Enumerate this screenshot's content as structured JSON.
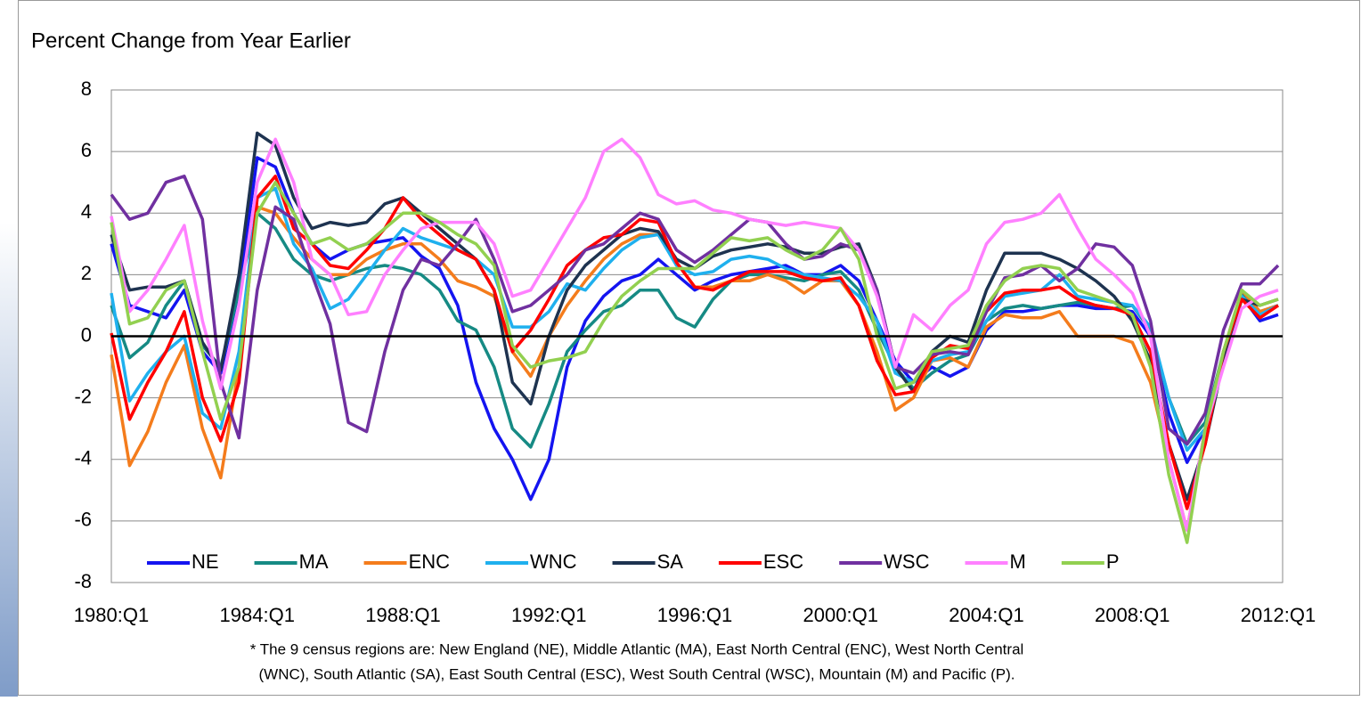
{
  "chart_data": {
    "type": "line",
    "title": "Percent Change from Year Earlier",
    "footnote": [
      "* The 9 census regions are: New England (NE), Middle Atlantic (MA), East North Central (ENC), West North Central",
      "(WNC), South Atlantic (SA), East South Central (ESC), West South Central (WSC), Mountain (M) and Pacific (P)."
    ],
    "categories": [
      "1980:Q1",
      null,
      null,
      null,
      null,
      null,
      null,
      null,
      "1984:Q1",
      null,
      null,
      null,
      null,
      null,
      null,
      null,
      "1988:Q1",
      null,
      null,
      null,
      null,
      null,
      null,
      null,
      "1992:Q1",
      null,
      null,
      null,
      null,
      null,
      null,
      null,
      "1996:Q1",
      null,
      null,
      null,
      null,
      null,
      null,
      null,
      "2000:Q1",
      null,
      null,
      null,
      null,
      null,
      null,
      null,
      "2004:Q1",
      null,
      null,
      null,
      null,
      null,
      null,
      null,
      "2008:Q1",
      null,
      null,
      null,
      null,
      null,
      null,
      null,
      "2012:Q1"
    ],
    "ylim": [
      -8,
      8
    ],
    "yticks": [
      -8,
      -6,
      -4,
      -2,
      0,
      2,
      4,
      6,
      8
    ],
    "grid": true,
    "legend": "bottom",
    "series": [
      {
        "name": "NE",
        "color": "#1414f0",
        "values": [
          3.0,
          1.0,
          0.8,
          0.6,
          1.5,
          -0.5,
          -1.2,
          1.5,
          5.8,
          5.5,
          4.0,
          3.0,
          2.5,
          2.8,
          3.0,
          3.1,
          3.2,
          2.6,
          2.2,
          1.0,
          -1.5,
          -3.0,
          -4.0,
          -5.3,
          -4.0,
          -1.0,
          0.5,
          1.3,
          1.8,
          2.0,
          2.5,
          2.0,
          1.5,
          1.8,
          2.0,
          2.1,
          2.2,
          2.3,
          2.0,
          2.0,
          2.3,
          1.8,
          0.5,
          -0.8,
          -1.5,
          -1.0,
          -1.3,
          -1.0,
          0.2,
          0.8,
          0.8,
          0.9,
          1.0,
          1.0,
          0.9,
          0.9,
          0.8,
          0.0,
          -2.5,
          -4.1,
          -3.0,
          -0.8,
          1.3,
          0.5,
          0.7
        ]
      },
      {
        "name": "MA",
        "color": "#168a84",
        "values": [
          1.0,
          -0.7,
          -0.2,
          1.0,
          1.8,
          -0.3,
          -1.0,
          1.5,
          4.0,
          3.5,
          2.5,
          2.0,
          1.8,
          2.0,
          2.2,
          2.3,
          2.2,
          2.0,
          1.5,
          0.5,
          0.2,
          -1.0,
          -3.0,
          -3.6,
          -2.2,
          -0.5,
          0.2,
          0.8,
          1.0,
          1.5,
          1.5,
          0.6,
          0.3,
          1.2,
          1.8,
          2.0,
          2.0,
          1.9,
          1.8,
          2.0,
          2.1,
          1.5,
          0.2,
          -1.0,
          -1.7,
          -1.2,
          -0.8,
          -0.6,
          0.5,
          0.9,
          1.0,
          0.9,
          1.0,
          1.1,
          1.0,
          0.9,
          1.0,
          0.2,
          -2.0,
          -3.5,
          -2.8,
          -0.5,
          1.4,
          0.8,
          1.0
        ]
      },
      {
        "name": "ENC",
        "color": "#f47c1c",
        "values": [
          -0.6,
          -4.2,
          -3.1,
          -1.5,
          -0.3,
          -3.0,
          -4.6,
          -1.0,
          4.2,
          4.0,
          3.2,
          2.5,
          2.0,
          2.0,
          2.5,
          2.8,
          3.0,
          3.0,
          2.5,
          1.8,
          1.6,
          1.3,
          -0.5,
          -1.3,
          0.0,
          1.0,
          1.8,
          2.5,
          3.0,
          3.3,
          3.3,
          2.4,
          1.6,
          1.6,
          1.8,
          1.8,
          2.0,
          1.8,
          1.4,
          1.8,
          1.8,
          1.0,
          -0.5,
          -2.4,
          -2.0,
          -0.8,
          -0.7,
          -1.0,
          0.3,
          0.7,
          0.6,
          0.6,
          0.8,
          0.0,
          0.0,
          0.0,
          -0.2,
          -1.5,
          -4.0,
          -6.3,
          -3.0,
          -0.5,
          1.5,
          0.8,
          1.0
        ]
      },
      {
        "name": "WNC",
        "color": "#1fb0ee",
        "values": [
          1.4,
          -2.1,
          -1.2,
          -0.5,
          0.0,
          -2.5,
          -3.0,
          -0.5,
          4.5,
          4.8,
          3.0,
          2.2,
          0.9,
          1.2,
          2.0,
          2.8,
          3.5,
          3.2,
          3.0,
          2.8,
          2.5,
          2.0,
          0.3,
          0.3,
          0.8,
          1.7,
          1.5,
          2.2,
          2.8,
          3.2,
          3.3,
          2.3,
          2.0,
          2.1,
          2.5,
          2.6,
          2.5,
          2.2,
          2.0,
          1.9,
          1.8,
          1.3,
          0.5,
          -1.2,
          -1.5,
          -0.8,
          -0.6,
          -0.5,
          0.5,
          1.3,
          1.4,
          1.5,
          2.0,
          1.3,
          1.2,
          1.1,
          1.0,
          0.3,
          -2.0,
          -3.7,
          -3.0,
          -0.5,
          1.3,
          0.7,
          1.0
        ]
      },
      {
        "name": "SA",
        "color": "#1e3350",
        "values": [
          3.3,
          1.5,
          1.6,
          1.6,
          1.8,
          -0.2,
          -1.1,
          2.0,
          6.6,
          6.2,
          4.5,
          3.5,
          3.7,
          3.6,
          3.7,
          4.3,
          4.5,
          4.0,
          3.5,
          3.0,
          2.5,
          1.5,
          -1.5,
          -2.2,
          0.0,
          1.5,
          2.3,
          2.8,
          3.3,
          3.5,
          3.4,
          2.5,
          2.2,
          2.6,
          2.8,
          2.9,
          3.0,
          2.9,
          2.7,
          2.7,
          2.9,
          3.0,
          1.5,
          -1.0,
          -1.8,
          -0.5,
          0.0,
          -0.2,
          1.5,
          2.7,
          2.7,
          2.7,
          2.5,
          2.2,
          1.8,
          1.3,
          0.5,
          -0.8,
          -3.5,
          -5.3,
          -3.5,
          -0.8,
          1.2,
          1.0,
          1.2
        ]
      },
      {
        "name": "ESC",
        "color": "#ff0000",
        "values": [
          0.1,
          -2.7,
          -1.5,
          -0.5,
          0.8,
          -2.0,
          -3.4,
          -1.5,
          4.5,
          5.2,
          3.5,
          3.0,
          2.3,
          2.2,
          2.8,
          3.5,
          4.5,
          3.8,
          3.3,
          2.8,
          2.5,
          1.5,
          -0.5,
          0.2,
          1.2,
          2.3,
          2.8,
          3.2,
          3.3,
          3.8,
          3.7,
          2.4,
          1.6,
          1.5,
          1.8,
          2.1,
          2.1,
          2.1,
          1.9,
          1.8,
          1.9,
          1.0,
          -0.8,
          -1.9,
          -1.8,
          -0.7,
          -0.3,
          -0.4,
          0.8,
          1.4,
          1.5,
          1.5,
          1.6,
          1.2,
          1.0,
          0.9,
          0.7,
          -0.5,
          -3.5,
          -5.6,
          -3.5,
          -0.5,
          1.2,
          0.6,
          1.0
        ]
      },
      {
        "name": "WSC",
        "color": "#7030a0",
        "values": [
          4.6,
          3.8,
          4.0,
          5.0,
          5.2,
          3.8,
          -1.5,
          -3.3,
          1.5,
          4.2,
          3.8,
          2.0,
          0.4,
          -2.8,
          -3.1,
          -0.5,
          1.5,
          2.5,
          2.3,
          3.0,
          3.8,
          2.5,
          0.8,
          1.0,
          1.5,
          2.0,
          2.8,
          3.0,
          3.5,
          4.0,
          3.8,
          2.8,
          2.4,
          2.8,
          3.3,
          3.8,
          3.7,
          3.0,
          2.5,
          2.6,
          3.0,
          2.8,
          1.5,
          -1.0,
          -1.2,
          -0.6,
          -0.5,
          -0.6,
          0.8,
          1.9,
          2.0,
          2.3,
          1.8,
          2.2,
          3.0,
          2.9,
          2.3,
          0.5,
          -3.0,
          -3.5,
          -2.5,
          0.2,
          1.7,
          1.7,
          2.3
        ]
      },
      {
        "name": "M",
        "color": "#ff80ff",
        "values": [
          3.9,
          0.8,
          1.5,
          2.5,
          3.6,
          0.5,
          -1.7,
          1.0,
          5.0,
          6.4,
          5.0,
          2.5,
          2.0,
          0.7,
          0.8,
          2.0,
          2.8,
          3.5,
          3.7,
          3.7,
          3.7,
          3.0,
          1.3,
          1.5,
          2.5,
          3.5,
          4.5,
          6.0,
          6.4,
          5.8,
          4.6,
          4.3,
          4.4,
          4.1,
          4.0,
          3.8,
          3.7,
          3.6,
          3.7,
          3.6,
          3.5,
          2.8,
          1.3,
          -1.0,
          0.7,
          0.2,
          1.0,
          1.5,
          3.0,
          3.7,
          3.8,
          4.0,
          4.6,
          3.5,
          2.5,
          2.0,
          1.4,
          0.0,
          -4.0,
          -6.3,
          -3.0,
          -1.0,
          0.9,
          1.3,
          1.5
        ]
      },
      {
        "name": "P",
        "color": "#92d050",
        "values": [
          3.7,
          0.4,
          0.6,
          1.5,
          1.8,
          -0.5,
          -2.7,
          -1.0,
          4.0,
          5.0,
          4.0,
          3.0,
          3.2,
          2.8,
          3.0,
          3.5,
          4.0,
          4.0,
          3.7,
          3.3,
          3.0,
          2.3,
          -0.3,
          -1.0,
          -0.8,
          -0.7,
          -0.5,
          0.5,
          1.3,
          1.8,
          2.2,
          2.2,
          2.2,
          2.7,
          3.2,
          3.1,
          3.2,
          2.8,
          2.5,
          2.8,
          3.5,
          2.5,
          0.0,
          -1.7,
          -1.5,
          -0.5,
          -0.4,
          -0.3,
          1.0,
          1.8,
          2.2,
          2.3,
          2.2,
          1.5,
          1.3,
          1.1,
          0.7,
          -1.0,
          -4.5,
          -6.7,
          -3.0,
          -0.5,
          1.5,
          1.0,
          1.2
        ]
      }
    ]
  }
}
